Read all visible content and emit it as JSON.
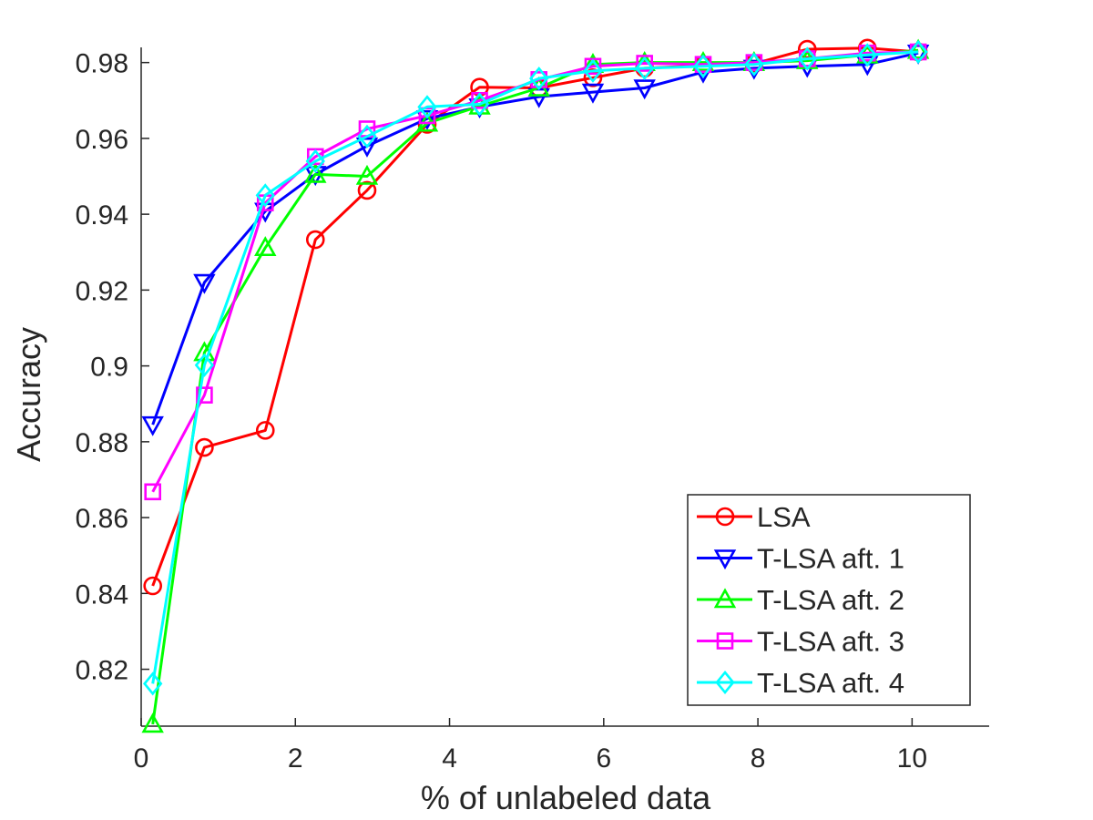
{
  "chart_data": {
    "type": "line",
    "title": "",
    "xlabel": "% of unlabeled data",
    "ylabel": "Accuracy",
    "xlim": [
      0,
      11
    ],
    "ylim": [
      0.805,
      0.984
    ],
    "xticks": [
      0,
      2,
      4,
      6,
      8,
      10
    ],
    "xtick_labels": [
      "0",
      "2",
      "4",
      "6",
      "8",
      "10"
    ],
    "yticks": [
      0.82,
      0.84,
      0.86,
      0.88,
      0.9,
      0.92,
      0.94,
      0.96,
      0.98
    ],
    "ytick_labels": [
      "0.82",
      "0.84",
      "0.86",
      "0.88",
      "0.9",
      "0.92",
      "0.94",
      "0.96",
      "0.98"
    ],
    "grid": false,
    "legend_position": "bottom-right",
    "x": [
      0.15,
      0.82,
      1.61,
      2.26,
      2.93,
      3.71,
      4.39,
      5.16,
      5.86,
      6.53,
      7.29,
      7.95,
      8.64,
      9.42,
      10.08
    ],
    "series": [
      {
        "name": "LSA",
        "color": "#ff0000",
        "marker": "circle",
        "values": [
          0.842,
          0.8785,
          0.883,
          0.9333,
          0.9463,
          0.9637,
          0.9735,
          0.9733,
          0.976,
          0.9785,
          0.9792,
          0.9797,
          0.9835,
          0.9838,
          0.9828
        ]
      },
      {
        "name": "T-LSA aft. 1",
        "color": "#0000ff",
        "marker": "triangle-down",
        "values": [
          0.8845,
          0.922,
          0.9408,
          0.9505,
          0.958,
          0.9652,
          0.9683,
          0.971,
          0.9722,
          0.9733,
          0.9775,
          0.9785,
          0.979,
          0.9795,
          0.9825
        ]
      },
      {
        "name": "T-LSA aft. 2",
        "color": "#00ff00",
        "marker": "triangle-up",
        "values": [
          0.8055,
          0.9035,
          0.9312,
          0.9505,
          0.95,
          0.964,
          0.9685,
          0.9733,
          0.9795,
          0.98,
          0.98,
          0.98,
          0.9805,
          0.982,
          0.9832
        ]
      },
      {
        "name": "T-LSA aft. 3",
        "color": "#ff00ff",
        "marker": "square",
        "values": [
          0.8668,
          0.8923,
          0.943,
          0.9552,
          0.9625,
          0.966,
          0.97,
          0.9755,
          0.979,
          0.9798,
          0.9795,
          0.98,
          0.981,
          0.9825,
          0.9828
        ]
      },
      {
        "name": "T-LSA aft. 4",
        "color": "#00ffff",
        "marker": "diamond",
        "values": [
          0.8162,
          0.9002,
          0.945,
          0.954,
          0.9605,
          0.9683,
          0.969,
          0.9758,
          0.9778,
          0.9785,
          0.979,
          0.9795,
          0.981,
          0.982,
          0.9828
        ]
      }
    ]
  }
}
